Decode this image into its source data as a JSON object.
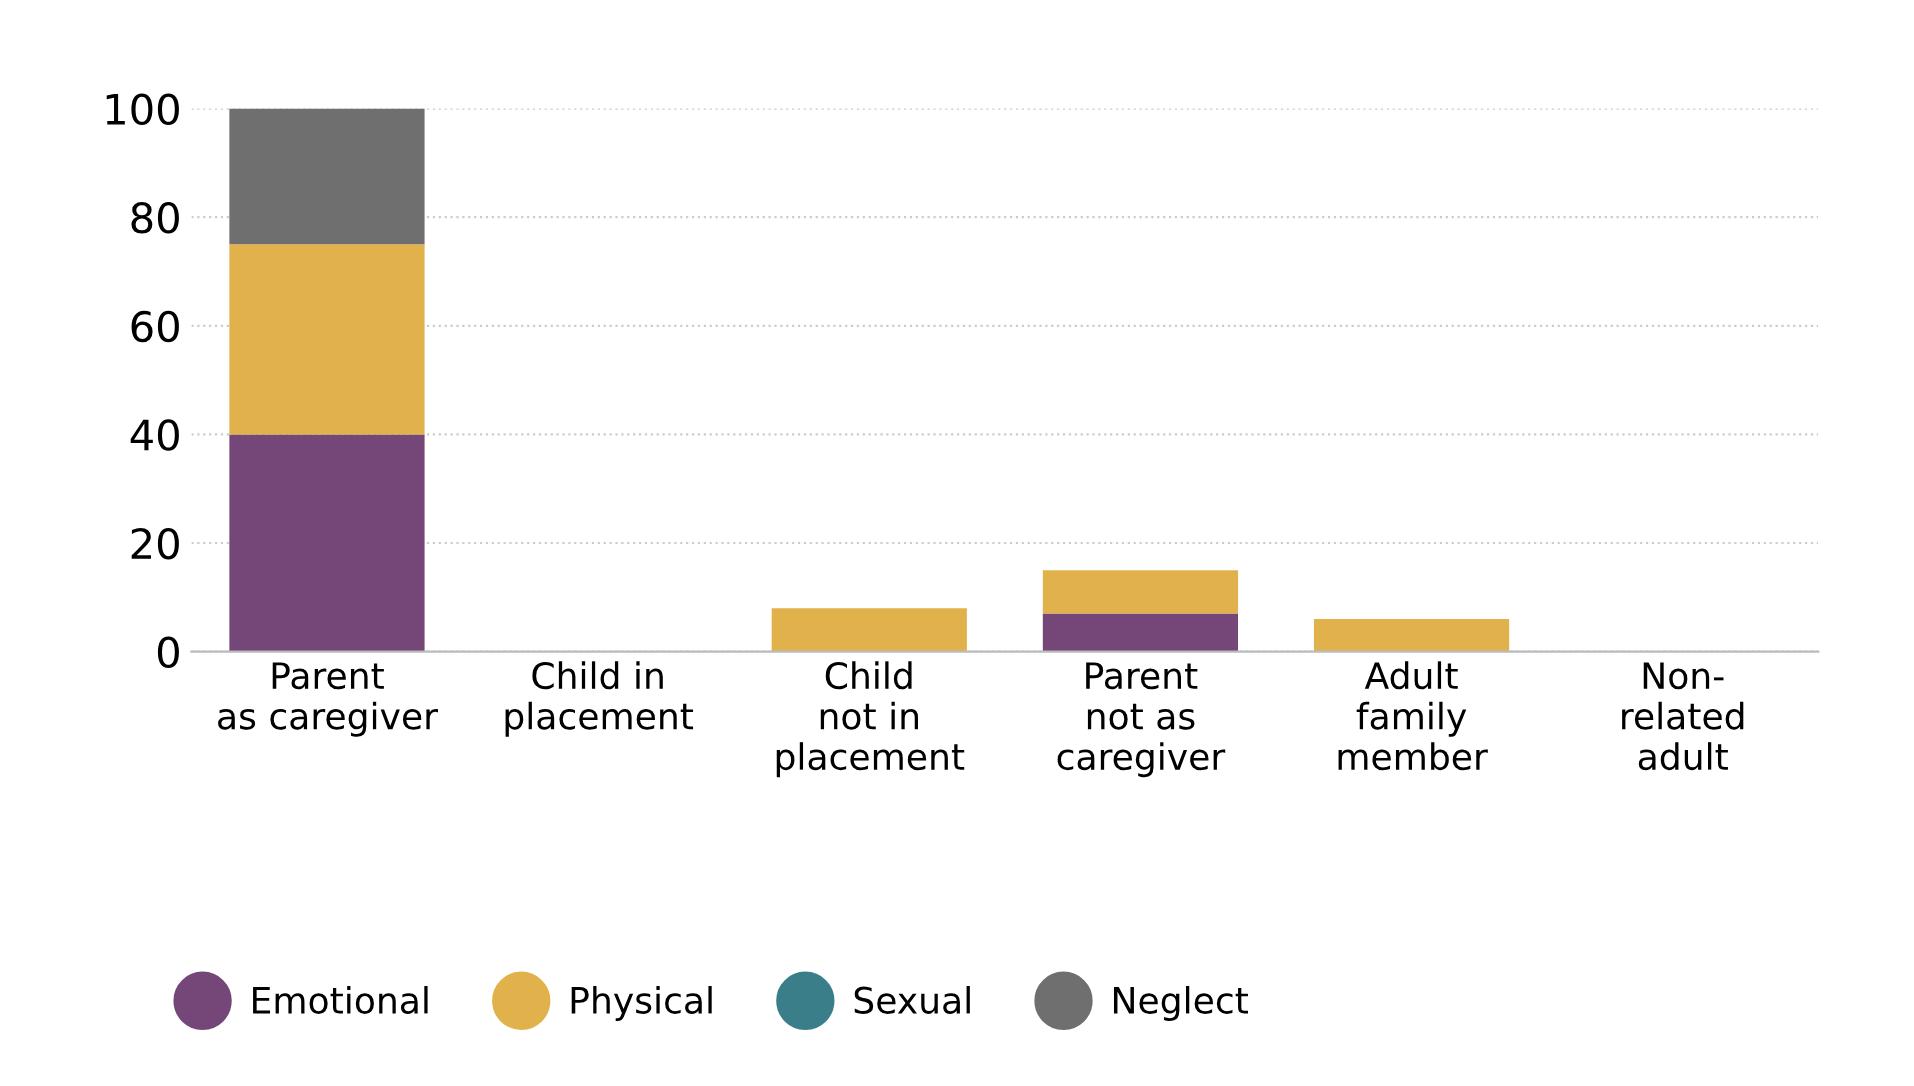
{
  "chart_data": {
    "type": "bar",
    "stacked": true,
    "categories": [
      "Parent\nas caregiver",
      "Child in\nplacement",
      "Child\nnot in\nplacement",
      "Parent\nnot as\ncaregiver",
      "Adult\nfamily\nmember",
      "Non-\nrelated\nadult"
    ],
    "series": [
      {
        "name": "Emotional",
        "color": "#754778",
        "values": [
          40,
          0,
          0,
          7,
          0,
          0
        ]
      },
      {
        "name": "Physical",
        "color": "#e1b24b",
        "values": [
          35,
          0,
          8,
          8,
          6,
          0
        ]
      },
      {
        "name": "Sexual",
        "color": "#3a7e8a",
        "values": [
          0,
          0,
          0,
          0,
          0,
          0
        ]
      },
      {
        "name": "Neglect",
        "color": "#6f6f6f",
        "values": [
          25,
          0,
          0,
          0,
          0,
          0
        ]
      }
    ],
    "ylim": [
      0,
      100
    ],
    "yticks": [
      0,
      20,
      40,
      60,
      80,
      100
    ],
    "grid": "y",
    "legend": "bottom"
  }
}
